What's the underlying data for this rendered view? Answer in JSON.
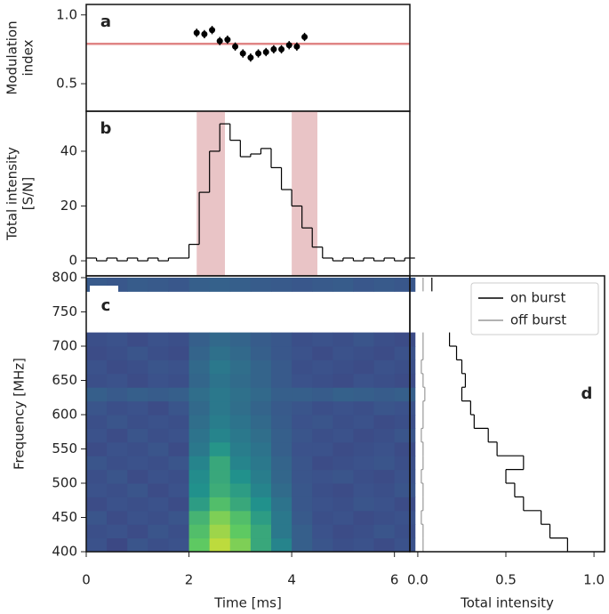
{
  "chart_data": [
    {
      "type": "errorbar",
      "label": "a",
      "ylabel": [
        "Modulation",
        "index"
      ],
      "x": [
        2.15,
        2.3,
        2.45,
        2.6,
        2.75,
        2.9,
        3.05,
        3.2,
        3.35,
        3.5,
        3.65,
        3.8,
        3.95,
        4.1,
        4.25
      ],
      "values": [
        0.87,
        0.86,
        0.89,
        0.81,
        0.82,
        0.77,
        0.72,
        0.69,
        0.72,
        0.73,
        0.75,
        0.75,
        0.78,
        0.77,
        0.84
      ],
      "errors": [
        0.03,
        0.03,
        0.03,
        0.03,
        0.03,
        0.03,
        0.03,
        0.03,
        0.03,
        0.03,
        0.03,
        0.03,
        0.03,
        0.03,
        0.03
      ],
      "color": "#000000",
      "hline": {
        "value": 0.79,
        "color": "#e08585"
      },
      "xlim": [
        0,
        6.3
      ],
      "ylim": [
        0.3,
        1.076
      ],
      "yticks": [
        0.5,
        {
          "value": 1,
          "label": "1.0"
        }
      ]
    },
    {
      "type": "step",
      "label": "b",
      "ylabel": [
        "Total intensity",
        "[S/N]"
      ],
      "x": [
        0.1,
        0.3,
        0.5,
        0.7,
        0.9,
        1.1,
        1.3,
        1.5,
        1.7,
        1.9,
        2.1,
        2.3,
        2.5,
        2.7,
        2.9,
        3.1,
        3.3,
        3.5,
        3.7,
        3.9,
        4.1,
        4.3,
        4.5,
        4.7,
        4.9,
        5.1,
        5.3,
        5.5,
        5.7,
        5.9,
        6.1,
        6.3
      ],
      "values": [
        1,
        0,
        1,
        0,
        1,
        0,
        1,
        0,
        1,
        1,
        6,
        25,
        40,
        50,
        44,
        38,
        39,
        41,
        34,
        26,
        20,
        12,
        5,
        1,
        0,
        1,
        0,
        1,
        0,
        1,
        0,
        1
      ],
      "color": "#000000",
      "shaded": [
        [
          2.15,
          2.7
        ],
        [
          4.0,
          4.5
        ]
      ],
      "shade_color": "#e3b5b8",
      "xlim": [
        0,
        6.3
      ],
      "ylim": [
        -5.5,
        54.6
      ],
      "yticks": [
        0,
        20,
        40
      ]
    },
    {
      "type": "heatmap",
      "label": "c",
      "ylabel": "Frequency [MHz]",
      "xlabel": "Time [ms]",
      "x": [
        0.2,
        0.6,
        1.0,
        1.4,
        1.8,
        2.2,
        2.6,
        3.0,
        3.4,
        3.8,
        4.2,
        4.6,
        5.0,
        5.4,
        5.8,
        6.2
      ],
      "y": [
        410,
        430,
        450,
        470,
        490,
        510,
        530,
        550,
        570,
        590,
        610,
        630,
        650,
        670,
        690,
        710,
        730,
        750,
        770,
        790
      ],
      "values": [
        [
          0.25,
          0.22,
          0.26,
          0.24,
          0.25,
          0.75,
          0.9,
          0.8,
          0.6,
          0.45,
          0.3,
          0.26,
          0.24,
          0.25,
          0.23,
          0.25
        ],
        [
          0.24,
          0.25,
          0.23,
          0.26,
          0.24,
          0.7,
          0.85,
          0.75,
          0.6,
          0.4,
          0.3,
          0.25,
          0.23,
          0.24,
          0.26,
          0.24
        ],
        [
          0.26,
          0.23,
          0.25,
          0.24,
          0.26,
          0.65,
          0.8,
          0.7,
          0.55,
          0.4,
          0.28,
          0.24,
          0.25,
          0.23,
          0.24,
          0.25
        ],
        [
          0.23,
          0.25,
          0.24,
          0.25,
          0.23,
          0.55,
          0.7,
          0.6,
          0.5,
          0.38,
          0.27,
          0.25,
          0.24,
          0.26,
          0.25,
          0.23
        ],
        [
          0.25,
          0.24,
          0.26,
          0.23,
          0.25,
          0.5,
          0.62,
          0.55,
          0.45,
          0.35,
          0.27,
          0.24,
          0.23,
          0.25,
          0.24,
          0.26
        ],
        [
          0.24,
          0.26,
          0.23,
          0.25,
          0.24,
          0.48,
          0.6,
          0.5,
          0.42,
          0.33,
          0.26,
          0.25,
          0.26,
          0.24,
          0.23,
          0.25
        ],
        [
          0.26,
          0.24,
          0.25,
          0.24,
          0.26,
          0.45,
          0.6,
          0.45,
          0.4,
          0.32,
          0.26,
          0.23,
          0.24,
          0.25,
          0.26,
          0.24
        ],
        [
          0.23,
          0.25,
          0.24,
          0.26,
          0.23,
          0.4,
          0.52,
          0.42,
          0.38,
          0.3,
          0.25,
          0.25,
          0.23,
          0.24,
          0.25,
          0.23
        ],
        [
          0.25,
          0.23,
          0.26,
          0.24,
          0.25,
          0.38,
          0.45,
          0.4,
          0.36,
          0.3,
          0.26,
          0.24,
          0.25,
          0.23,
          0.24,
          0.26
        ],
        [
          0.24,
          0.26,
          0.24,
          0.25,
          0.24,
          0.36,
          0.42,
          0.38,
          0.34,
          0.29,
          0.25,
          0.26,
          0.24,
          0.25,
          0.23,
          0.24
        ],
        [
          0.26,
          0.24,
          0.25,
          0.23,
          0.26,
          0.34,
          0.4,
          0.36,
          0.32,
          0.28,
          0.26,
          0.24,
          0.25,
          0.24,
          0.26,
          0.25
        ],
        [
          0.3,
          0.28,
          0.3,
          0.29,
          0.3,
          0.36,
          0.4,
          0.37,
          0.34,
          0.3,
          0.3,
          0.29,
          0.31,
          0.3,
          0.29,
          0.3
        ],
        [
          0.24,
          0.25,
          0.23,
          0.25,
          0.24,
          0.33,
          0.38,
          0.35,
          0.32,
          0.28,
          0.25,
          0.24,
          0.23,
          0.25,
          0.24,
          0.23
        ],
        [
          0.25,
          0.23,
          0.24,
          0.26,
          0.25,
          0.34,
          0.4,
          0.36,
          0.32,
          0.28,
          0.24,
          0.25,
          0.24,
          0.23,
          0.25,
          0.24
        ],
        [
          0.23,
          0.24,
          0.26,
          0.24,
          0.23,
          0.32,
          0.37,
          0.34,
          0.3,
          0.27,
          0.25,
          0.23,
          0.25,
          0.24,
          0.23,
          0.25
        ],
        [
          0.24,
          0.25,
          0.23,
          0.25,
          0.24,
          0.3,
          0.34,
          0.32,
          0.29,
          0.27,
          0.24,
          0.25,
          0.24,
          0.26,
          0.24,
          0.23
        ],
        [
          null,
          null,
          null,
          null,
          null,
          null,
          null,
          null,
          null,
          null,
          null,
          null,
          null,
          null,
          null,
          null
        ],
        [
          null,
          null,
          null,
          null,
          null,
          null,
          null,
          null,
          null,
          null,
          null,
          null,
          null,
          null,
          null,
          null
        ],
        [
          null,
          null,
          null,
          null,
          null,
          null,
          null,
          null,
          null,
          null,
          null,
          null,
          null,
          null,
          null,
          null
        ],
        [
          0.28,
          0.27,
          0.29,
          0.28,
          0.27,
          0.3,
          0.31,
          0.3,
          0.29,
          0.28,
          0.27,
          0.28,
          0.29,
          0.27,
          0.28,
          0.27
        ]
      ],
      "colormap": "viridis",
      "clim": [
        0,
        1
      ],
      "xlim": [
        0,
        6.3
      ],
      "ylim": [
        400,
        802.6
      ],
      "xticks": [
        0,
        2,
        4,
        6
      ],
      "yticks": [
        400,
        450,
        500,
        550,
        600,
        650,
        700,
        750,
        800
      ]
    },
    {
      "type": "spectrum",
      "label": "d",
      "xlabel": "Total intensity",
      "y": [
        410,
        430,
        450,
        470,
        490,
        510,
        530,
        550,
        570,
        590,
        610,
        630,
        650,
        670,
        690,
        710,
        730,
        750,
        770,
        790
      ],
      "series": [
        {
          "name": "on burst",
          "color": "#000000",
          "values": [
            0.85,
            0.75,
            0.7,
            0.6,
            0.55,
            0.5,
            0.6,
            0.45,
            0.4,
            0.32,
            0.3,
            0.25,
            0.27,
            0.25,
            0.22,
            0.18,
            null,
            null,
            null,
            0.08
          ]
        },
        {
          "name": "off burst",
          "color": "#999999",
          "values": [
            0.03,
            0.03,
            0.02,
            0.03,
            0.03,
            0.02,
            0.03,
            0.03,
            0.02,
            0.03,
            0.03,
            0.04,
            0.03,
            0.02,
            0.03,
            0.03,
            null,
            null,
            null,
            0.03
          ]
        }
      ],
      "xlim": [
        -0.045,
        1.06
      ],
      "ylim": [
        400,
        802.6
      ],
      "xticks": [
        {
          "value": 0,
          "label": "0.0"
        },
        0.5,
        {
          "value": 1,
          "label": "1.0"
        }
      ],
      "legend": "upper right"
    }
  ]
}
